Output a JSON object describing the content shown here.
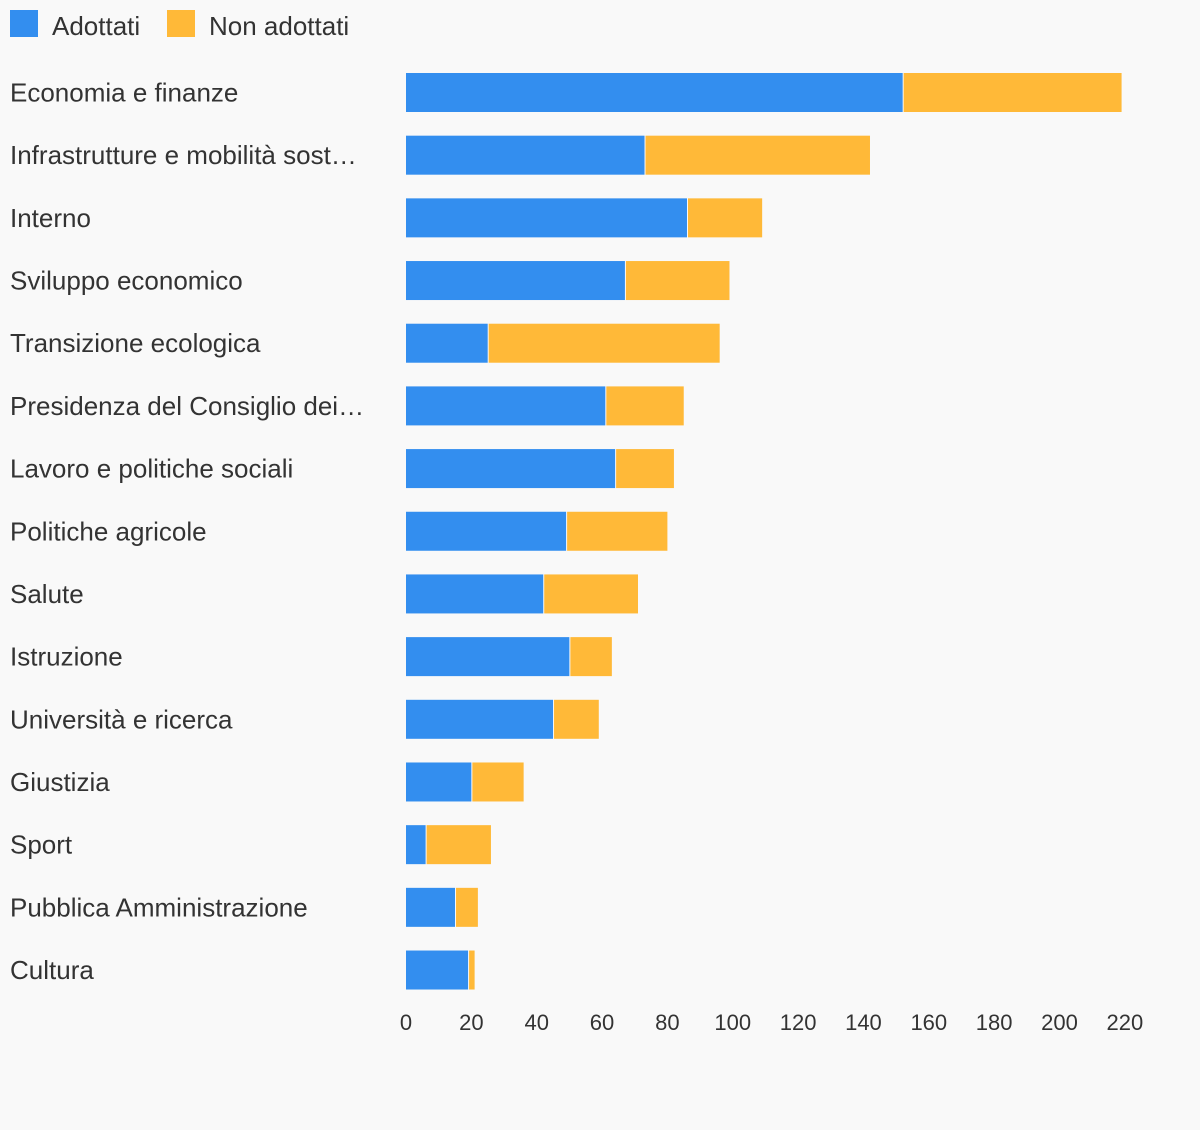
{
  "chart_data": {
    "type": "bar",
    "orientation": "horizontal",
    "stacked": true,
    "legend_position": "top-left",
    "grid": false,
    "xlim": [
      0,
      220
    ],
    "x_ticks": [
      "0",
      "20",
      "40",
      "60",
      "80",
      "100",
      "120",
      "140",
      "160",
      "180",
      "200",
      "220"
    ],
    "categories": [
      "Economia e finanze",
      "Infrastrutture e mobilità sost…",
      "Interno",
      "Sviluppo economico",
      "Transizione ecologica",
      "Presidenza del Consiglio dei…",
      "Lavoro e politiche sociali",
      "Politiche agricole",
      "Salute",
      "Istruzione",
      "Università e ricerca",
      "Giustizia",
      "Sport",
      "Pubblica Amministrazione",
      "Cultura"
    ],
    "series": [
      {
        "name": "Adottati",
        "color": "#338eef",
        "values": [
          152,
          73,
          86,
          67,
          25,
          61,
          64,
          49,
          42,
          50,
          45,
          20,
          6,
          15,
          19
        ]
      },
      {
        "name": "Non adottati",
        "color": "#ffb938",
        "values": [
          67,
          69,
          23,
          32,
          71,
          24,
          18,
          31,
          29,
          13,
          14,
          16,
          20,
          7,
          2
        ]
      }
    ]
  }
}
